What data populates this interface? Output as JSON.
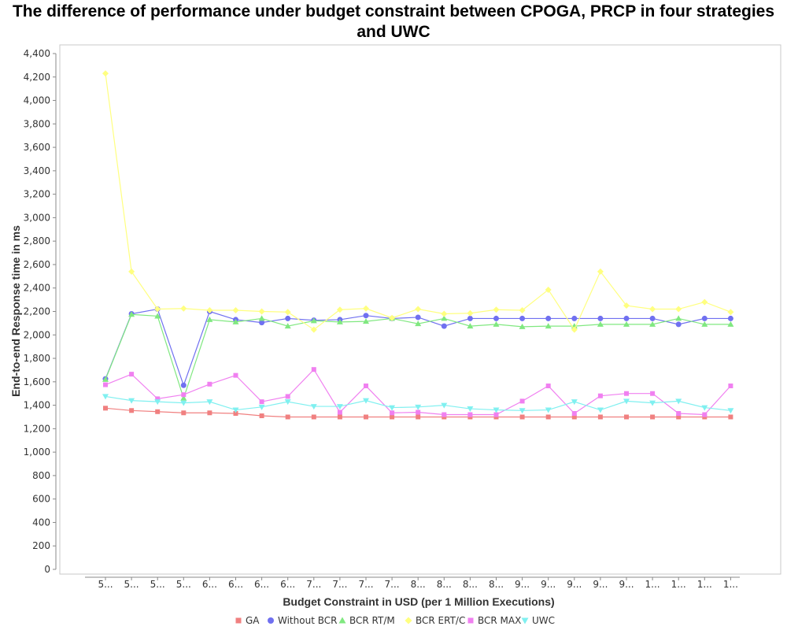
{
  "chart_data": {
    "type": "line",
    "title": "The difference of performance under budget constraint between CPOGA, PRCP in  four strategies and UWC",
    "xlabel": "Budget Constraint in USD (per 1 Million Executions)",
    "ylabel": "End-to-end Response time in ms",
    "ylim": [
      0,
      4400
    ],
    "yticks": [
      0,
      200,
      400,
      600,
      800,
      1000,
      1200,
      1400,
      1600,
      1800,
      2000,
      2200,
      2400,
      2600,
      2800,
      3000,
      3200,
      3400,
      3600,
      3800,
      4000,
      4200,
      4400
    ],
    "ytick_labels": [
      "0",
      "200",
      "400",
      "600",
      "800",
      "1,000",
      "1,200",
      "1,400",
      "1,600",
      "1,800",
      "2,000",
      "2,200",
      "2,400",
      "2,600",
      "2,800",
      "3,000",
      "3,200",
      "3,400",
      "3,600",
      "3,800",
      "4,000",
      "4,200",
      "4,400"
    ],
    "categories": [
      "5...",
      "5...",
      "5...",
      "5...",
      "6...",
      "6...",
      "6...",
      "6...",
      "7...",
      "7...",
      "7...",
      "7...",
      "8...",
      "8...",
      "8...",
      "8...",
      "9...",
      "9...",
      "9...",
      "9...",
      "9...",
      "1...",
      "1...",
      "1...",
      "1..."
    ],
    "grid": false,
    "legend_position": "bottom",
    "series": [
      {
        "name": "GA",
        "color": "#f08080",
        "marker": "square",
        "values": [
          1375,
          1355,
          1345,
          1335,
          1335,
          1330,
          1310,
          1300,
          1300,
          1300,
          1300,
          1300,
          1300,
          1300,
          1300,
          1300,
          1300,
          1300,
          1300,
          1300,
          1300,
          1300,
          1300,
          1300,
          1300
        ]
      },
      {
        "name": "Without BCR",
        "color": "#7070f0",
        "marker": "circle",
        "values": [
          1625,
          2180,
          2220,
          1570,
          2200,
          2130,
          2105,
          2140,
          2125,
          2130,
          2165,
          2140,
          2150,
          2075,
          2140,
          2140,
          2140,
          2140,
          2140,
          2140,
          2140,
          2140,
          2090,
          2140,
          2140
        ]
      },
      {
        "name": "BCR RT/M",
        "color": "#80e880",
        "marker": "triangle-up",
        "values": [
          1620,
          2175,
          2160,
          1460,
          2130,
          2110,
          2140,
          2075,
          2120,
          2110,
          2115,
          2140,
          2095,
          2140,
          2075,
          2090,
          2070,
          2075,
          2075,
          2090,
          2090,
          2090,
          2140,
          2090,
          2090
        ]
      },
      {
        "name": "BCR ERT/C",
        "color": "#ffff80",
        "marker": "diamond",
        "values": [
          4230,
          2540,
          2220,
          2225,
          2210,
          2210,
          2200,
          2195,
          2045,
          2215,
          2225,
          2145,
          2220,
          2180,
          2185,
          2215,
          2210,
          2385,
          2045,
          2540,
          2250,
          2220,
          2220,
          2280,
          2195
        ]
      },
      {
        "name": "BCR MAX",
        "color": "#f080f0",
        "marker": "square",
        "values": [
          1575,
          1665,
          1455,
          1490,
          1580,
          1655,
          1430,
          1475,
          1705,
          1340,
          1565,
          1335,
          1340,
          1320,
          1320,
          1320,
          1435,
          1565,
          1330,
          1480,
          1500,
          1500,
          1330,
          1320,
          1565
        ]
      },
      {
        "name": "UWC",
        "color": "#80f0f0",
        "marker": "triangle-down",
        "values": [
          1475,
          1440,
          1430,
          1420,
          1430,
          1360,
          1385,
          1430,
          1390,
          1390,
          1440,
          1380,
          1385,
          1400,
          1370,
          1360,
          1355,
          1360,
          1430,
          1360,
          1435,
          1420,
          1435,
          1380,
          1355
        ]
      }
    ]
  }
}
